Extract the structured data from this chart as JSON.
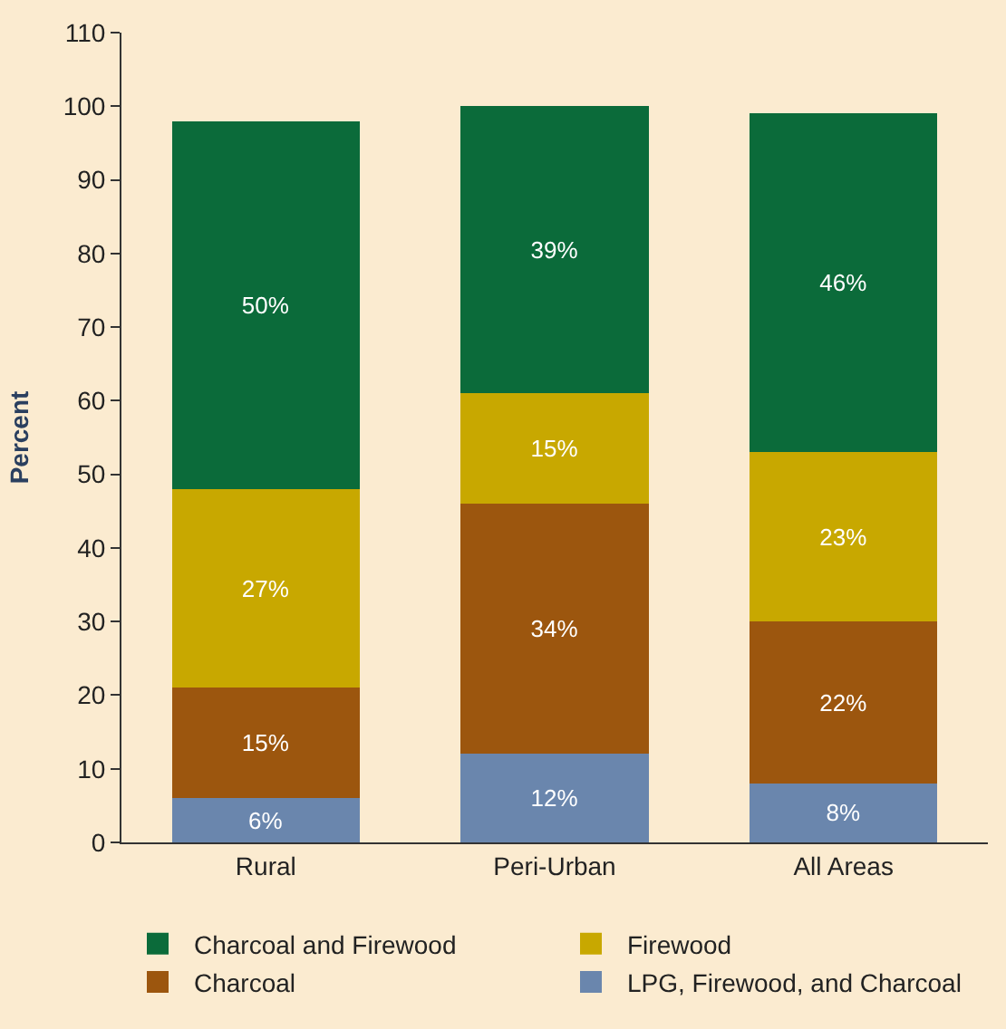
{
  "chart_data": {
    "type": "bar",
    "stacked": true,
    "ylabel": "Percent",
    "categories": [
      "Rural",
      "Peri-Urban",
      "All Areas"
    ],
    "ylim": [
      0,
      110
    ],
    "yticks": [
      0,
      10,
      20,
      30,
      40,
      50,
      60,
      70,
      80,
      90,
      100,
      110
    ],
    "grid": false,
    "legend": "bottom",
    "series": [
      {
        "name": "LPG, Firewood, and Charcoal",
        "color": "#6a86ad",
        "values": [
          6,
          12,
          8
        ],
        "value_labels": [
          "6%",
          "12%",
          "8%"
        ]
      },
      {
        "name": "Charcoal",
        "color": "#9c560e",
        "values": [
          15,
          34,
          22
        ],
        "value_labels": [
          "15%",
          "34%",
          "22%"
        ]
      },
      {
        "name": "Firewood",
        "color": "#c8a800",
        "values": [
          27,
          15,
          23
        ],
        "value_labels": [
          "27%",
          "15%",
          "23%"
        ]
      },
      {
        "name": "Charcoal and Firewood",
        "color": "#0b6b3a",
        "values": [
          50,
          39,
          46
        ],
        "value_labels": [
          "50%",
          "39%",
          "46%"
        ]
      }
    ]
  }
}
